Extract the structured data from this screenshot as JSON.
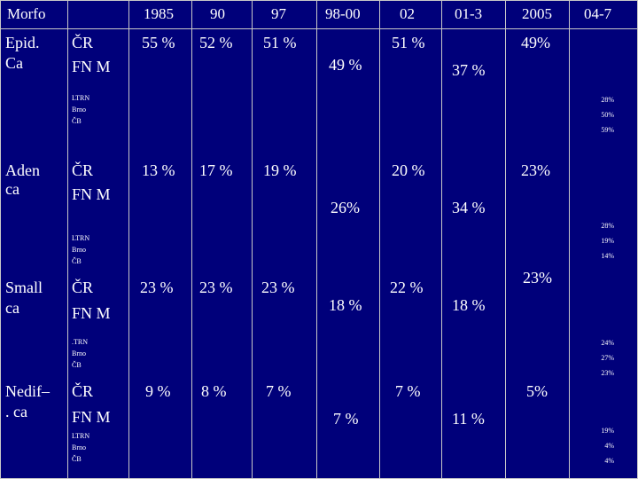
{
  "header": {
    "morfo": "Morfo",
    "years": [
      "1985",
      "90",
      "97",
      "98-00",
      "02",
      "01-3",
      "2005",
      "04-7"
    ]
  },
  "sub_labels": [
    "LTRN",
    "Brno",
    "ČB"
  ],
  "groups": [
    {
      "name": [
        "Epid.",
        "Ca"
      ],
      "cr_label": "ČR",
      "fnm_label": "FN M",
      "cr_values": [
        "55 %",
        "52 %",
        "51 %",
        "51 %",
        "49%"
      ],
      "fnm_values": [
        "49 %",
        "37 %"
      ],
      "sub_values": [
        "28%",
        "50%",
        "59%"
      ],
      "sub_first": "LTRN"
    },
    {
      "name": [
        "Aden",
        "ca"
      ],
      "cr_label": "ČR",
      "fnm_label": "FN M",
      "cr_values": [
        "13 %",
        "17 %",
        "19 %",
        "20 %",
        "23%"
      ],
      "fnm_values": [
        "26%",
        "34 %"
      ],
      "sub_values": [
        "28%",
        "19%",
        "14%"
      ],
      "sub_first": "LTRN"
    },
    {
      "name": [
        "Small",
        "ca"
      ],
      "cr_label": "ČR",
      "fnm_label": "FN M",
      "cr_values": [
        "23 %",
        "23 %",
        "23 %",
        "22 %",
        "23%"
      ],
      "fnm_values": [
        "18 %",
        "18 %"
      ],
      "sub_values": [
        "24%",
        "27%",
        "23%"
      ],
      "sub_first": ".TRN"
    },
    {
      "name": [
        "Nedif–",
        ". ca"
      ],
      "cr_label": "ČR",
      "fnm_label": "FN M",
      "cr_values": [
        "9 %",
        "8 %",
        "7 %",
        "7 %",
        "5%"
      ],
      "fnm_values": [
        "7 %",
        "11 %"
      ],
      "sub_values": [
        "19%",
        "4%",
        "4%"
      ],
      "sub_first": "LTRN"
    }
  ]
}
